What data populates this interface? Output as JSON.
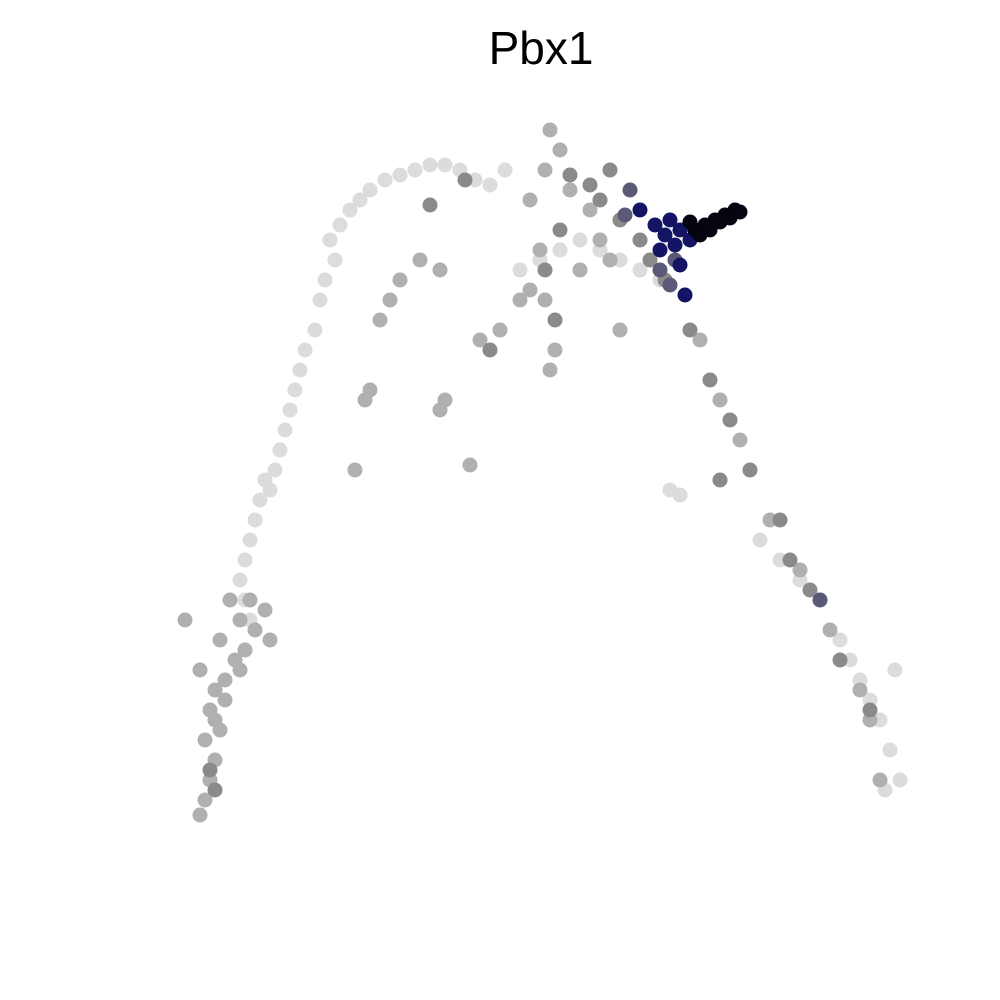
{
  "chart_data": {
    "type": "scatter",
    "title": "Pbx1",
    "xlim": [
      0,
      100
    ],
    "ylim": [
      0,
      100
    ],
    "grid": false,
    "point_radius": 0.75,
    "series": [
      {
        "color": "#dcdcdc",
        "x": [
          33,
          34,
          35,
          36,
          37,
          38.5,
          40,
          41.5,
          43,
          44.5,
          46,
          47.5,
          49,
          50.5,
          33.5,
          32.5,
          32,
          31.5,
          30.5,
          30,
          29.5,
          29,
          28.5,
          28,
          27.5,
          27,
          26.5,
          26,
          25.5,
          25,
          24.5,
          24,
          24.5,
          25,
          52,
          54,
          56,
          58,
          60,
          62,
          64,
          66,
          84,
          85,
          86,
          87,
          88,
          89,
          90,
          89.5,
          88.5,
          67,
          68,
          76,
          78,
          80,
          82
        ],
        "y": [
          76,
          77.5,
          79,
          80,
          81,
          82,
          82.5,
          83,
          83.5,
          83.5,
          83,
          82,
          81.5,
          83,
          74,
          72,
          70,
          67,
          65,
          63,
          61,
          59,
          57,
          55,
          53,
          51,
          52,
          50,
          48,
          46,
          44,
          42,
          40,
          38,
          73,
          74,
          75,
          76,
          75,
          74,
          73,
          72,
          36,
          34,
          32,
          30,
          28,
          25,
          22,
          33,
          21,
          51,
          50.5,
          46,
          44,
          42,
          40
        ]
      },
      {
        "color": "#b0b0b0",
        "x": [
          20,
          20.5,
          21,
          21.5,
          20.5,
          22,
          21,
          21.5,
          22.5,
          20,
          23.5,
          24.5,
          22,
          25.5,
          24,
          26.5,
          23,
          25,
          18.5,
          27,
          21.5,
          22.5,
          24,
          38,
          39,
          40,
          42,
          44,
          48,
          50,
          52,
          53,
          54.5,
          55,
          55.5,
          54,
          53,
          54.5,
          56,
          55,
          57,
          59,
          36.5,
          37,
          44,
          44.5,
          47,
          62,
          58,
          70,
          72,
          74,
          77,
          80,
          83,
          86,
          87,
          88,
          35.5,
          60,
          61
        ],
        "y": [
          18.5,
          20,
          22,
          24,
          26,
          27,
          29,
          31,
          32,
          33,
          34,
          35,
          36,
          37,
          38,
          39,
          40,
          40,
          38,
          36,
          28,
          30,
          33,
          68,
          70,
          72,
          74,
          73,
          66,
          67,
          70,
          71,
          70,
          63,
          65,
          75,
          80,
          83,
          85,
          87,
          81,
          79,
          60,
          61,
          59,
          60,
          53.5,
          67,
          73,
          66,
          60,
          56,
          48,
          43,
          37,
          31,
          28,
          22,
          53,
          76,
          74
        ]
      },
      {
        "color": "#8a8a8a",
        "x": [
          57,
          59,
          60,
          61,
          62,
          64,
          65,
          66.5,
          69,
          71,
          73,
          72,
          75,
          78,
          79,
          81,
          84,
          87,
          49,
          54.5,
          55.5,
          21,
          21.5,
          43,
          46.5,
          56
        ],
        "y": [
          82.5,
          81.5,
          80,
          83,
          78,
          76,
          74,
          72,
          67,
          62,
          58,
          52,
          53,
          48,
          44,
          41,
          34,
          29,
          65,
          73,
          68,
          23,
          21,
          79.5,
          82,
          77
        ]
      },
      {
        "color": "#5a5a78",
        "x": [
          63,
          62.5,
          66,
          67,
          82,
          67.5
        ],
        "y": [
          81,
          78.5,
          73,
          71.5,
          40,
          74
        ]
      },
      {
        "color": "#141464",
        "x": [
          64,
          65.5,
          66.5,
          67.5,
          68,
          68.5,
          66,
          67,
          69,
          68
        ],
        "y": [
          79,
          77.5,
          76.5,
          75.5,
          73.5,
          70.5,
          75,
          78,
          76,
          77
        ]
      },
      {
        "color": "#050510",
        "x": [
          69.5,
          70.5,
          71.5,
          72.5,
          73.5,
          74,
          70,
          71,
          72,
          69,
          73
        ],
        "y": [
          77,
          77.5,
          78,
          78.5,
          79,
          78.8,
          76.5,
          77,
          77.8,
          77.8,
          78.2
        ]
      }
    ]
  }
}
